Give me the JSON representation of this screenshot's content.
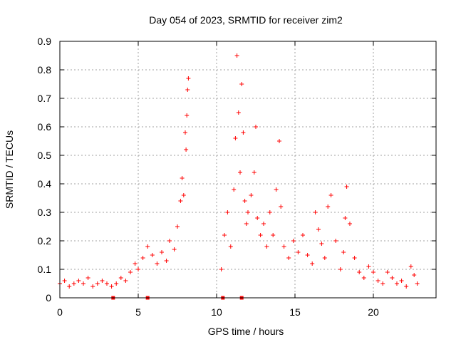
{
  "colors": {
    "series": "#ff0000",
    "axis": "#000000",
    "grid": "#a0a0a0"
  },
  "chart_data": {
    "type": "scatter",
    "title": "Day 054 of 2023, SRMTID for receiver zim2",
    "xlabel": "GPS time / hours",
    "ylabel": "SRMTID / TECUs",
    "xlim": [
      0,
      24
    ],
    "ylim": [
      0,
      0.9
    ],
    "xticks": [
      0,
      5,
      10,
      15,
      20
    ],
    "yticks": [
      0,
      0.1,
      0.2,
      0.3,
      0.4,
      0.5,
      0.6,
      0.7,
      0.8,
      0.9
    ],
    "xtick_labels": [
      "0",
      "5",
      "10",
      "15",
      "20"
    ],
    "ytick_labels": [
      "0",
      "0.1",
      "0.2",
      "0.3",
      "0.4",
      "0.5",
      "0.6",
      "0.7",
      "0.8",
      "0.9"
    ],
    "grid": true,
    "marker": "plus",
    "series": [
      {
        "name": "zim2",
        "x": [
          0.0,
          0.3,
          0.6,
          0.9,
          1.2,
          1.5,
          1.8,
          2.1,
          2.4,
          2.7,
          3.0,
          3.3,
          3.6,
          3.9,
          4.2,
          4.5,
          4.8,
          5.0,
          5.3,
          5.6,
          5.9,
          6.2,
          6.5,
          6.8,
          7.0,
          7.3,
          7.5,
          7.7,
          7.8,
          7.9,
          8.0,
          8.05,
          8.1,
          8.15,
          8.2,
          10.3,
          10.5,
          10.7,
          10.9,
          11.1,
          11.2,
          11.3,
          11.4,
          11.5,
          11.6,
          11.7,
          11.8,
          11.9,
          12.0,
          12.2,
          12.4,
          12.5,
          12.6,
          12.8,
          13.0,
          13.2,
          13.4,
          13.6,
          13.8,
          14.0,
          14.1,
          14.3,
          14.6,
          14.9,
          15.2,
          15.5,
          15.8,
          16.1,
          16.3,
          16.5,
          16.7,
          16.9,
          17.1,
          17.3,
          17.6,
          17.9,
          18.1,
          18.2,
          18.3,
          18.5,
          18.8,
          19.1,
          19.4,
          19.7,
          20.0,
          20.3,
          20.6,
          20.9,
          21.2,
          21.5,
          21.8,
          22.1,
          22.4,
          22.6,
          22.8
        ],
        "y": [
          0.05,
          0.06,
          0.04,
          0.05,
          0.06,
          0.05,
          0.07,
          0.04,
          0.05,
          0.06,
          0.05,
          0.04,
          0.05,
          0.07,
          0.06,
          0.09,
          0.12,
          0.1,
          0.14,
          0.18,
          0.15,
          0.12,
          0.16,
          0.13,
          0.2,
          0.17,
          0.25,
          0.34,
          0.42,
          0.36,
          0.58,
          0.52,
          0.64,
          0.73,
          0.77,
          0.1,
          0.22,
          0.3,
          0.18,
          0.38,
          0.56,
          0.85,
          0.65,
          0.44,
          0.75,
          0.58,
          0.34,
          0.26,
          0.3,
          0.36,
          0.44,
          0.6,
          0.28,
          0.22,
          0.26,
          0.18,
          0.3,
          0.22,
          0.38,
          0.55,
          0.32,
          0.18,
          0.14,
          0.2,
          0.16,
          0.22,
          0.15,
          0.12,
          0.3,
          0.24,
          0.19,
          0.14,
          0.32,
          0.36,
          0.2,
          0.1,
          0.16,
          0.28,
          0.39,
          0.26,
          0.14,
          0.09,
          0.07,
          0.11,
          0.09,
          0.06,
          0.05,
          0.09,
          0.07,
          0.05,
          0.06,
          0.04,
          0.11,
          0.08,
          0.05
        ]
      }
    ],
    "zero_markers_x": [
      3.4,
      5.6,
      10.4,
      11.6
    ]
  }
}
